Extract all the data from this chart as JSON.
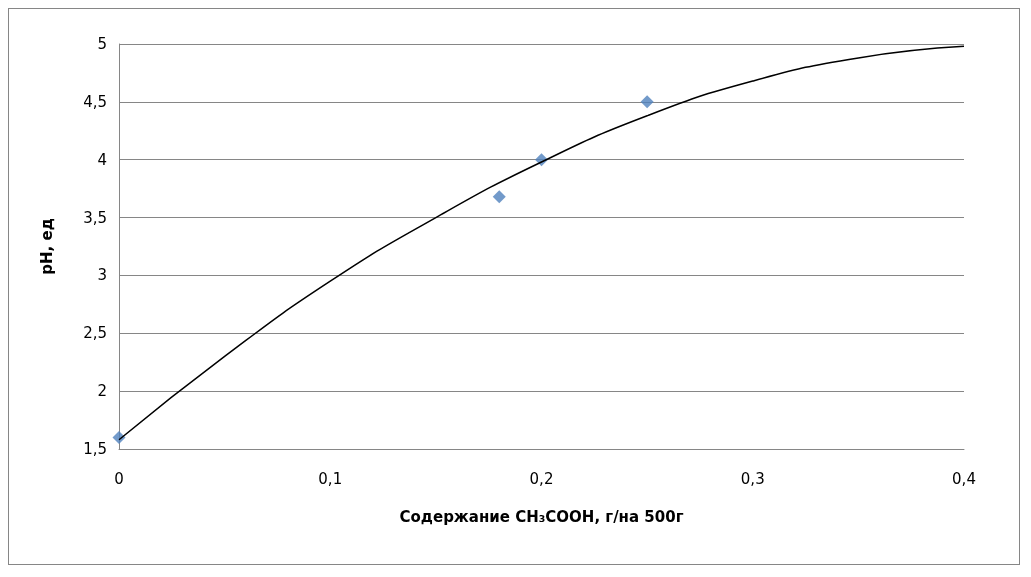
{
  "chart_data": {
    "type": "scatter",
    "xlabel": "Содержание CH₃COOH, г/на 500г",
    "ylabel": "pH, ед",
    "xlim": [
      0,
      0.4
    ],
    "xticks": [
      {
        "value": 0,
        "label": "0"
      },
      {
        "value": 0.1,
        "label": "0,1"
      },
      {
        "value": 0.2,
        "label": "0,2"
      },
      {
        "value": 0.3,
        "label": "0,3"
      },
      {
        "value": 0.4,
        "label": "0,4"
      }
    ],
    "ylim": [
      1.5,
      5
    ],
    "yticks": [
      {
        "value": 1.5,
        "label": "1,5"
      },
      {
        "value": 2,
        "label": "2"
      },
      {
        "value": 2.5,
        "label": "2,5"
      },
      {
        "value": 3,
        "label": "3"
      },
      {
        "value": 3.5,
        "label": "3,5"
      },
      {
        "value": 4,
        "label": "4"
      },
      {
        "value": 4.5,
        "label": "4,5"
      },
      {
        "value": 5,
        "label": "5"
      }
    ],
    "grid": "y",
    "series": [
      {
        "color": "#4f81bd",
        "marker": "diamond",
        "x": [
          0,
          0.18,
          0.2,
          0.25
        ],
        "values": [
          1.6,
          3.68,
          4.0,
          4.5
        ]
      },
      {
        "type": "line",
        "color": "#000000",
        "marker": "none",
        "line_style": "solid",
        "x": [
          0,
          0.05,
          0.1,
          0.15,
          0.2,
          0.25,
          0.3,
          0.35,
          0.4
        ],
        "values": [
          1.58,
          2.3,
          2.95,
          3.5,
          3.98,
          4.38,
          4.68,
          4.88,
          4.98
        ]
      }
    ]
  }
}
